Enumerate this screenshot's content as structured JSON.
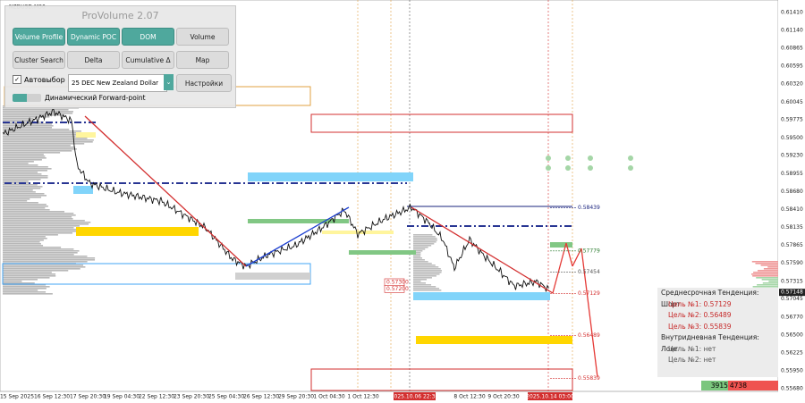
{
  "symbol": "NZDUSD,M30",
  "panel": {
    "title": "ProVolume 2.07",
    "buttons": [
      "Volume Profile",
      "Dynamic POC",
      "DOM",
      "Volume",
      "Cluster Search",
      "Delta",
      "Cumulative Δ",
      "Map"
    ],
    "autoselect": "Автовыбор",
    "contract": "25 DEC New Zealand Dollar",
    "settings": "Настройки",
    "forward_point": "Динамический Forward-point"
  },
  "price_axis": {
    "labels": [
      "0.61410",
      "0.61140",
      "0.60865",
      "0.60595",
      "0.60320",
      "0.60045",
      "0.59775",
      "0.59500",
      "0.59230",
      "0.58955",
      "0.58680",
      "0.58410",
      "0.58135",
      "0.57865",
      "0.57590",
      "0.57315",
      "0.57045",
      "0.56770",
      "0.56500",
      "0.56225",
      "0.55950",
      "0.55680"
    ],
    "current": "0.57148"
  },
  "time_axis": {
    "labels": [
      "15 Sep 2025",
      "16 Sep 12:30",
      "17 Sep 20:30",
      "19 Sep 04:30",
      "22 Sep 12:30",
      "23 Sep 20:30",
      "25 Sep 04:30",
      "26 Sep 12:30",
      "29 Sep 20:30",
      "1 Oct 04:30",
      "1 Oct 12:30",
      "8 Oct 12:30",
      "9 Oct 20:30"
    ],
    "markers": [
      "2025.10.06 22:30",
      "2025.10.14 03:00"
    ]
  },
  "levels": [
    "0.58439",
    "0.57779",
    "0.57454",
    "0.57129",
    "0.56489",
    "0.55839"
  ],
  "zone_labels": [
    "0.57300",
    "0.57200"
  ],
  "info": {
    "medium_trend": "Среднесрочная Тенденция: Шорт",
    "targets": [
      "Цель №1: 0.57129",
      "Цель №2: 0.56489",
      "Цель №3: 0.55839"
    ],
    "intraday_trend": "Внутридневная Тенденция: Лонг",
    "intraday_targets": [
      "Цель №1: нет",
      "Цель №2: нет"
    ]
  },
  "volume": {
    "buy": "3915",
    "sell": "4738"
  }
}
